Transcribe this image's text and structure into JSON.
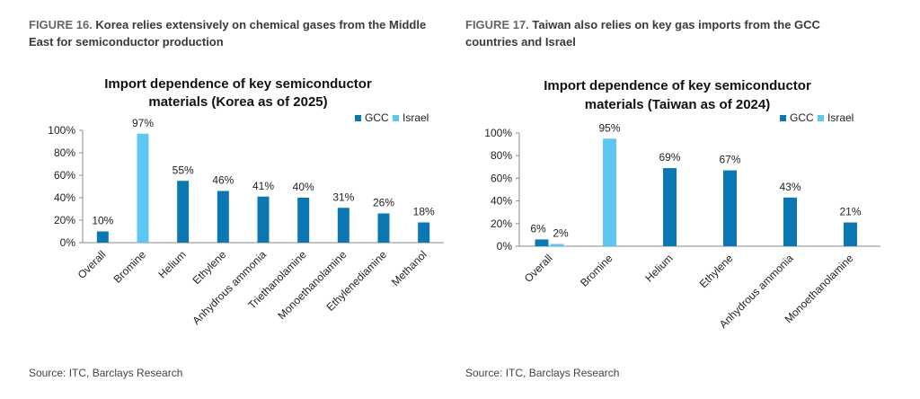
{
  "colors": {
    "gcc": "#0b78b4",
    "israel": "#5cc8f2",
    "axis": "#888888"
  },
  "figures": [
    {
      "number": "FIGURE 16.",
      "caption": "Korea relies extensively on chemical gases from the Middle East for semiconductor production",
      "source": "Source: ITC, Barclays Research"
    },
    {
      "number": "FIGURE 17.",
      "caption": "Taiwan also relies on key gas imports from the GCC countries and Israel",
      "source": "Source: ITC, Barclays Research"
    }
  ],
  "chart_data": [
    {
      "type": "bar",
      "title": [
        "Import dependence of key semiconductor",
        "materials (Korea as of 2025)"
      ],
      "categories": [
        "Overall",
        "Bromine",
        "Helium",
        "Ethylene",
        "Anhydrous ammonia",
        "Triethanolamine",
        "Monoethanolamine",
        "Ethylenediamine",
        "Methanol"
      ],
      "series": [
        {
          "name": "GCC",
          "values": [
            10,
            null,
            55,
            46,
            41,
            40,
            31,
            26,
            18
          ]
        },
        {
          "name": "Israel",
          "values": [
            null,
            97,
            null,
            null,
            null,
            null,
            null,
            null,
            null
          ]
        }
      ],
      "data_labels": [
        "10%",
        "97%",
        "55%",
        "46%",
        "41%",
        "40%",
        "31%",
        "26%",
        "18%"
      ],
      "ylim": [
        0,
        100
      ],
      "yticks": [
        "0%",
        "20%",
        "40%",
        "60%",
        "80%",
        "100%"
      ],
      "legend": "top-right",
      "grid": false
    },
    {
      "type": "bar",
      "title": [
        "Import dependence of key semiconductor",
        "materials (Taiwan as of 2024)"
      ],
      "categories": [
        "Overall",
        "Bromine",
        "Helium",
        "Ethylene",
        "Anhydrous ammonia",
        "Monoethanolamine"
      ],
      "series": [
        {
          "name": "GCC",
          "values": [
            6,
            null,
            69,
            67,
            43,
            21
          ]
        },
        {
          "name": "Israel",
          "values": [
            2,
            95,
            null,
            null,
            null,
            null
          ]
        }
      ],
      "data_labels": [
        [
          "6%",
          "2%"
        ],
        [
          "95%"
        ],
        [
          "69%"
        ],
        [
          "67%"
        ],
        [
          "43%"
        ],
        [
          "21%"
        ]
      ],
      "ylim": [
        0,
        100
      ],
      "yticks": [
        "0%",
        "20%",
        "40%",
        "60%",
        "80%",
        "100%"
      ],
      "legend": "top-right",
      "grid": false
    }
  ]
}
